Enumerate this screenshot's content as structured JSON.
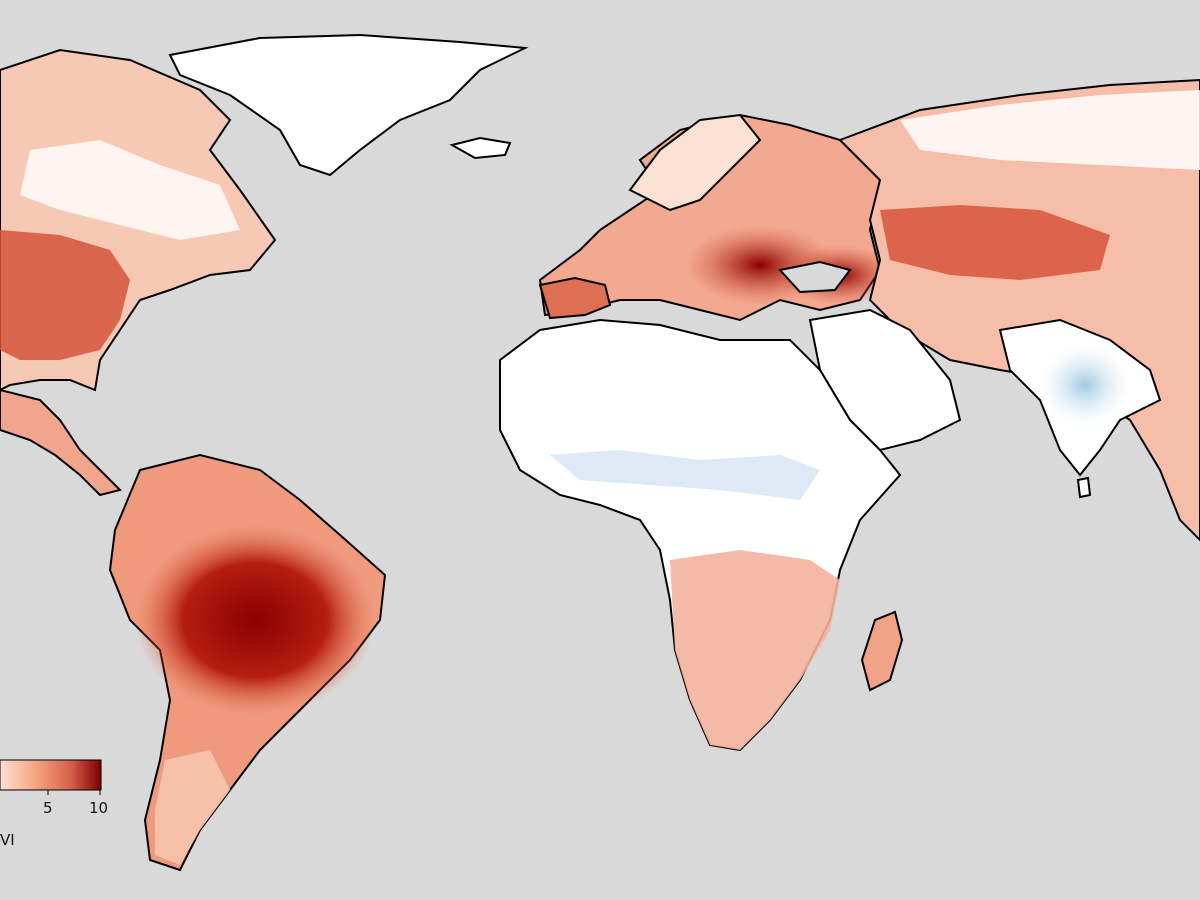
{
  "map": {
    "ocean_color": "#d9d9d9",
    "land_color": "#ffffff",
    "border_color": "#000000",
    "colormap": [
      "#2c7bb6",
      "#abd9e9",
      "#ffffff",
      "#fcbba1",
      "#ef6548",
      "#b30000",
      "#7f0000"
    ],
    "regions": [
      "north-america",
      "greenland",
      "central-america",
      "south-america",
      "europe",
      "africa",
      "middle-east",
      "russia-asia",
      "india",
      "madagascar",
      "iceland"
    ]
  },
  "legend": {
    "ticks": [
      "5",
      "10"
    ],
    "label": "VI"
  }
}
